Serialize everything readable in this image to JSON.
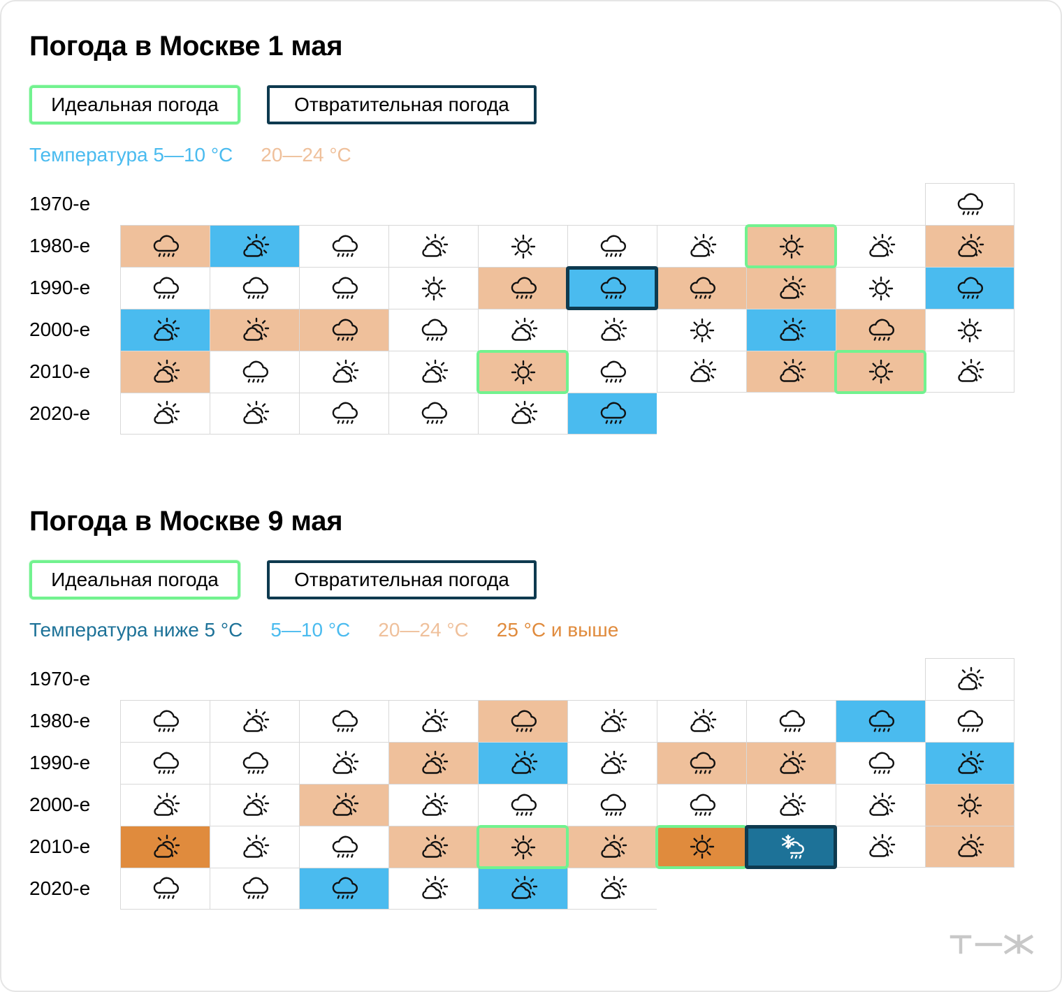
{
  "colors": {
    "cold_below5": "#1d7298",
    "cool_5_10": "#4abbef",
    "warm_20_24": "#efc09b",
    "hot_25plus": "#e08b3d",
    "ideal_border": "#72f28f",
    "awful_border": "#0e3a4f"
  },
  "brand": {
    "logo": "Т—Ж"
  },
  "decades": [
    "1970-е",
    "1980-е",
    "1990-е",
    "2000-е",
    "2010-е",
    "2020-е"
  ],
  "panels": [
    {
      "title": "Погода в Москве 1 мая",
      "badges": {
        "ideal": "Идеальная погода",
        "awful": "Отвратительная погода"
      },
      "legend": [
        {
          "label": "Температура 5—10 °C",
          "color": "#4abbef"
        },
        {
          "label": "20—24 °C",
          "color": "#efc09b"
        }
      ],
      "chart_data": {
        "type": "table",
        "title": "Погода в Москве 1 мая",
        "rows": [
          "1970-е",
          "1980-е",
          "1990-е",
          "2000-е",
          "2010-е",
          "2020-е"
        ],
        "columns": [
          0,
          1,
          2,
          3,
          4,
          5,
          6,
          7,
          8,
          9
        ],
        "icon_legend": {
          "s": "sunny-icon",
          "p": "partly-cloudy-icon",
          "r": "rain-icon",
          "n": "snow-rain-icon"
        },
        "fill_legend": {
          "cool": "5—10 °C",
          "warm": "20—24 °C"
        },
        "years": [
          {
            "decade": "1970-е",
            "col": 9,
            "icon": "r",
            "fill": "",
            "mark": ""
          },
          {
            "decade": "1980-е",
            "col": 0,
            "icon": "r",
            "fill": "warm",
            "mark": ""
          },
          {
            "decade": "1980-е",
            "col": 1,
            "icon": "p",
            "fill": "cool",
            "mark": ""
          },
          {
            "decade": "1980-е",
            "col": 2,
            "icon": "r",
            "fill": "",
            "mark": ""
          },
          {
            "decade": "1980-е",
            "col": 3,
            "icon": "p",
            "fill": "",
            "mark": ""
          },
          {
            "decade": "1980-е",
            "col": 4,
            "icon": "s",
            "fill": "",
            "mark": ""
          },
          {
            "decade": "1980-е",
            "col": 5,
            "icon": "r",
            "fill": "",
            "mark": ""
          },
          {
            "decade": "1980-е",
            "col": 6,
            "icon": "p",
            "fill": "",
            "mark": ""
          },
          {
            "decade": "1980-е",
            "col": 7,
            "icon": "s",
            "fill": "warm",
            "mark": "ideal"
          },
          {
            "decade": "1980-е",
            "col": 8,
            "icon": "p",
            "fill": "",
            "mark": ""
          },
          {
            "decade": "1980-е",
            "col": 9,
            "icon": "p",
            "fill": "warm",
            "mark": ""
          },
          {
            "decade": "1990-е",
            "col": 0,
            "icon": "r",
            "fill": "",
            "mark": ""
          },
          {
            "decade": "1990-е",
            "col": 1,
            "icon": "r",
            "fill": "",
            "mark": ""
          },
          {
            "decade": "1990-е",
            "col": 2,
            "icon": "r",
            "fill": "",
            "mark": ""
          },
          {
            "decade": "1990-е",
            "col": 3,
            "icon": "s",
            "fill": "",
            "mark": ""
          },
          {
            "decade": "1990-е",
            "col": 4,
            "icon": "r",
            "fill": "warm",
            "mark": ""
          },
          {
            "decade": "1990-е",
            "col": 5,
            "icon": "r",
            "fill": "cool",
            "mark": "awful"
          },
          {
            "decade": "1990-е",
            "col": 6,
            "icon": "r",
            "fill": "warm",
            "mark": ""
          },
          {
            "decade": "1990-е",
            "col": 7,
            "icon": "p",
            "fill": "warm",
            "mark": ""
          },
          {
            "decade": "1990-е",
            "col": 8,
            "icon": "s",
            "fill": "",
            "mark": ""
          },
          {
            "decade": "1990-е",
            "col": 9,
            "icon": "r",
            "fill": "cool",
            "mark": ""
          },
          {
            "decade": "2000-е",
            "col": 0,
            "icon": "p",
            "fill": "cool",
            "mark": ""
          },
          {
            "decade": "2000-е",
            "col": 1,
            "icon": "p",
            "fill": "warm",
            "mark": ""
          },
          {
            "decade": "2000-е",
            "col": 2,
            "icon": "r",
            "fill": "warm",
            "mark": ""
          },
          {
            "decade": "2000-е",
            "col": 3,
            "icon": "r",
            "fill": "",
            "mark": ""
          },
          {
            "decade": "2000-е",
            "col": 4,
            "icon": "p",
            "fill": "",
            "mark": ""
          },
          {
            "decade": "2000-е",
            "col": 5,
            "icon": "p",
            "fill": "",
            "mark": ""
          },
          {
            "decade": "2000-е",
            "col": 6,
            "icon": "s",
            "fill": "",
            "mark": ""
          },
          {
            "decade": "2000-е",
            "col": 7,
            "icon": "p",
            "fill": "cool",
            "mark": ""
          },
          {
            "decade": "2000-е",
            "col": 8,
            "icon": "r",
            "fill": "warm",
            "mark": ""
          },
          {
            "decade": "2000-е",
            "col": 9,
            "icon": "s",
            "fill": "",
            "mark": ""
          },
          {
            "decade": "2010-е",
            "col": 0,
            "icon": "p",
            "fill": "warm",
            "mark": ""
          },
          {
            "decade": "2010-е",
            "col": 1,
            "icon": "r",
            "fill": "",
            "mark": ""
          },
          {
            "decade": "2010-е",
            "col": 2,
            "icon": "p",
            "fill": "",
            "mark": ""
          },
          {
            "decade": "2010-е",
            "col": 3,
            "icon": "p",
            "fill": "",
            "mark": ""
          },
          {
            "decade": "2010-е",
            "col": 4,
            "icon": "s",
            "fill": "warm",
            "mark": "ideal"
          },
          {
            "decade": "2010-е",
            "col": 5,
            "icon": "r",
            "fill": "",
            "mark": ""
          },
          {
            "decade": "2010-е",
            "col": 6,
            "icon": "p",
            "fill": "",
            "mark": ""
          },
          {
            "decade": "2010-е",
            "col": 7,
            "icon": "p",
            "fill": "warm",
            "mark": ""
          },
          {
            "decade": "2010-е",
            "col": 8,
            "icon": "s",
            "fill": "warm",
            "mark": "ideal"
          },
          {
            "decade": "2010-е",
            "col": 9,
            "icon": "p",
            "fill": "",
            "mark": ""
          },
          {
            "decade": "2020-е",
            "col": 0,
            "icon": "p",
            "fill": "",
            "mark": ""
          },
          {
            "decade": "2020-е",
            "col": 1,
            "icon": "p",
            "fill": "",
            "mark": ""
          },
          {
            "decade": "2020-е",
            "col": 2,
            "icon": "r",
            "fill": "",
            "mark": ""
          },
          {
            "decade": "2020-е",
            "col": 3,
            "icon": "r",
            "fill": "",
            "mark": ""
          },
          {
            "decade": "2020-е",
            "col": 4,
            "icon": "p",
            "fill": "",
            "mark": ""
          },
          {
            "decade": "2020-е",
            "col": 5,
            "icon": "r",
            "fill": "cool",
            "mark": ""
          }
        ]
      }
    },
    {
      "title": "Погода в Москве 9 мая",
      "badges": {
        "ideal": "Идеальная погода",
        "awful": "Отвратительная погода"
      },
      "legend": [
        {
          "label": "Температура ниже 5 °C",
          "color": "#1d7298"
        },
        {
          "label": "5—10 °C",
          "color": "#4abbef"
        },
        {
          "label": "20—24 °C",
          "color": "#efc09b"
        },
        {
          "label": "25 °C и выше",
          "color": "#e08b3d"
        }
      ],
      "chart_data": {
        "type": "table",
        "title": "Погода в Москве 9 мая",
        "rows": [
          "1970-е",
          "1980-е",
          "1990-е",
          "2000-е",
          "2010-е",
          "2020-е"
        ],
        "columns": [
          0,
          1,
          2,
          3,
          4,
          5,
          6,
          7,
          8,
          9
        ],
        "icon_legend": {
          "s": "sunny-icon",
          "p": "partly-cloudy-icon",
          "r": "rain-icon",
          "n": "snow-rain-icon"
        },
        "fill_legend": {
          "cold": "ниже 5 °C",
          "cool": "5—10 °C",
          "warm": "20—24 °C",
          "hot": "25 °C и выше"
        },
        "years": [
          {
            "decade": "1970-е",
            "col": 9,
            "icon": "p",
            "fill": "",
            "mark": ""
          },
          {
            "decade": "1980-е",
            "col": 0,
            "icon": "r",
            "fill": "",
            "mark": ""
          },
          {
            "decade": "1980-е",
            "col": 1,
            "icon": "p",
            "fill": "",
            "mark": ""
          },
          {
            "decade": "1980-е",
            "col": 2,
            "icon": "r",
            "fill": "",
            "mark": ""
          },
          {
            "decade": "1980-е",
            "col": 3,
            "icon": "p",
            "fill": "",
            "mark": ""
          },
          {
            "decade": "1980-е",
            "col": 4,
            "icon": "r",
            "fill": "warm",
            "mark": ""
          },
          {
            "decade": "1980-е",
            "col": 5,
            "icon": "p",
            "fill": "",
            "mark": ""
          },
          {
            "decade": "1980-е",
            "col": 6,
            "icon": "p",
            "fill": "",
            "mark": ""
          },
          {
            "decade": "1980-е",
            "col": 7,
            "icon": "r",
            "fill": "",
            "mark": ""
          },
          {
            "decade": "1980-е",
            "col": 8,
            "icon": "r",
            "fill": "cool",
            "mark": ""
          },
          {
            "decade": "1980-е",
            "col": 9,
            "icon": "r",
            "fill": "",
            "mark": ""
          },
          {
            "decade": "1990-е",
            "col": 0,
            "icon": "r",
            "fill": "",
            "mark": ""
          },
          {
            "decade": "1990-е",
            "col": 1,
            "icon": "r",
            "fill": "",
            "mark": ""
          },
          {
            "decade": "1990-е",
            "col": 2,
            "icon": "p",
            "fill": "",
            "mark": ""
          },
          {
            "decade": "1990-е",
            "col": 3,
            "icon": "p",
            "fill": "warm",
            "mark": ""
          },
          {
            "decade": "1990-е",
            "col": 4,
            "icon": "p",
            "fill": "cool",
            "mark": ""
          },
          {
            "decade": "1990-е",
            "col": 5,
            "icon": "p",
            "fill": "",
            "mark": ""
          },
          {
            "decade": "1990-е",
            "col": 6,
            "icon": "r",
            "fill": "warm",
            "mark": ""
          },
          {
            "decade": "1990-е",
            "col": 7,
            "icon": "p",
            "fill": "warm",
            "mark": ""
          },
          {
            "decade": "1990-е",
            "col": 8,
            "icon": "r",
            "fill": "",
            "mark": ""
          },
          {
            "decade": "1990-е",
            "col": 9,
            "icon": "p",
            "fill": "cool",
            "mark": ""
          },
          {
            "decade": "2000-е",
            "col": 0,
            "icon": "p",
            "fill": "",
            "mark": ""
          },
          {
            "decade": "2000-е",
            "col": 1,
            "icon": "p",
            "fill": "",
            "mark": ""
          },
          {
            "decade": "2000-е",
            "col": 2,
            "icon": "p",
            "fill": "warm",
            "mark": ""
          },
          {
            "decade": "2000-е",
            "col": 3,
            "icon": "p",
            "fill": "",
            "mark": ""
          },
          {
            "decade": "2000-е",
            "col": 4,
            "icon": "r",
            "fill": "",
            "mark": ""
          },
          {
            "decade": "2000-е",
            "col": 5,
            "icon": "r",
            "fill": "",
            "mark": ""
          },
          {
            "decade": "2000-е",
            "col": 6,
            "icon": "r",
            "fill": "",
            "mark": ""
          },
          {
            "decade": "2000-е",
            "col": 7,
            "icon": "p",
            "fill": "",
            "mark": ""
          },
          {
            "decade": "2000-е",
            "col": 8,
            "icon": "p",
            "fill": "",
            "mark": ""
          },
          {
            "decade": "2000-е",
            "col": 9,
            "icon": "s",
            "fill": "warm",
            "mark": ""
          },
          {
            "decade": "2010-е",
            "col": 0,
            "icon": "p",
            "fill": "hot",
            "mark": ""
          },
          {
            "decade": "2010-е",
            "col": 1,
            "icon": "p",
            "fill": "",
            "mark": ""
          },
          {
            "decade": "2010-е",
            "col": 2,
            "icon": "r",
            "fill": "",
            "mark": ""
          },
          {
            "decade": "2010-е",
            "col": 3,
            "icon": "p",
            "fill": "warm",
            "mark": ""
          },
          {
            "decade": "2010-е",
            "col": 4,
            "icon": "s",
            "fill": "warm",
            "mark": "ideal"
          },
          {
            "decade": "2010-е",
            "col": 5,
            "icon": "p",
            "fill": "warm",
            "mark": ""
          },
          {
            "decade": "2010-е",
            "col": 6,
            "icon": "s",
            "fill": "hot",
            "mark": "ideal"
          },
          {
            "decade": "2010-е",
            "col": 7,
            "icon": "n",
            "fill": "cold",
            "mark": "awful"
          },
          {
            "decade": "2010-е",
            "col": 8,
            "icon": "p",
            "fill": "",
            "mark": ""
          },
          {
            "decade": "2010-е",
            "col": 9,
            "icon": "p",
            "fill": "warm",
            "mark": ""
          },
          {
            "decade": "2020-е",
            "col": 0,
            "icon": "r",
            "fill": "",
            "mark": ""
          },
          {
            "decade": "2020-е",
            "col": 1,
            "icon": "r",
            "fill": "",
            "mark": ""
          },
          {
            "decade": "2020-е",
            "col": 2,
            "icon": "r",
            "fill": "cool",
            "mark": ""
          },
          {
            "decade": "2020-е",
            "col": 3,
            "icon": "p",
            "fill": "",
            "mark": ""
          },
          {
            "decade": "2020-е",
            "col": 4,
            "icon": "p",
            "fill": "cool",
            "mark": ""
          },
          {
            "decade": "2020-е",
            "col": 5,
            "icon": "p",
            "fill": "",
            "mark": ""
          }
        ]
      }
    }
  ]
}
